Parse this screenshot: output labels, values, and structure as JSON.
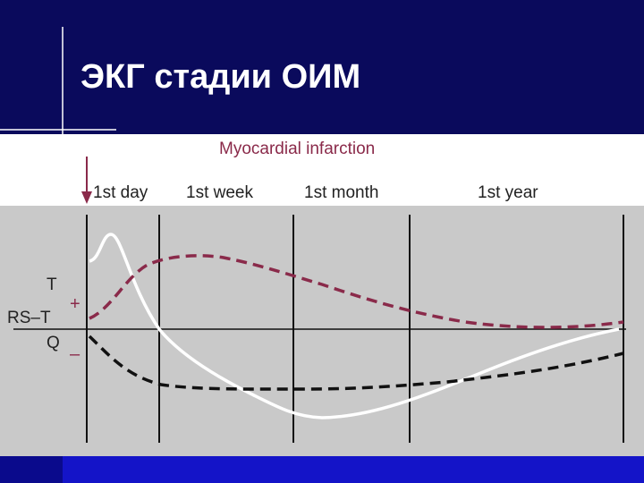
{
  "title": "ЭКГ стадии ОИМ",
  "figure": {
    "heading": "Myocardial infarction",
    "periods": [
      "1st day",
      "1st week",
      "1st month",
      "1st year"
    ],
    "wave_labels": [
      "T",
      "RS–T",
      "Q"
    ],
    "signs": [
      "+",
      "–"
    ]
  }
}
